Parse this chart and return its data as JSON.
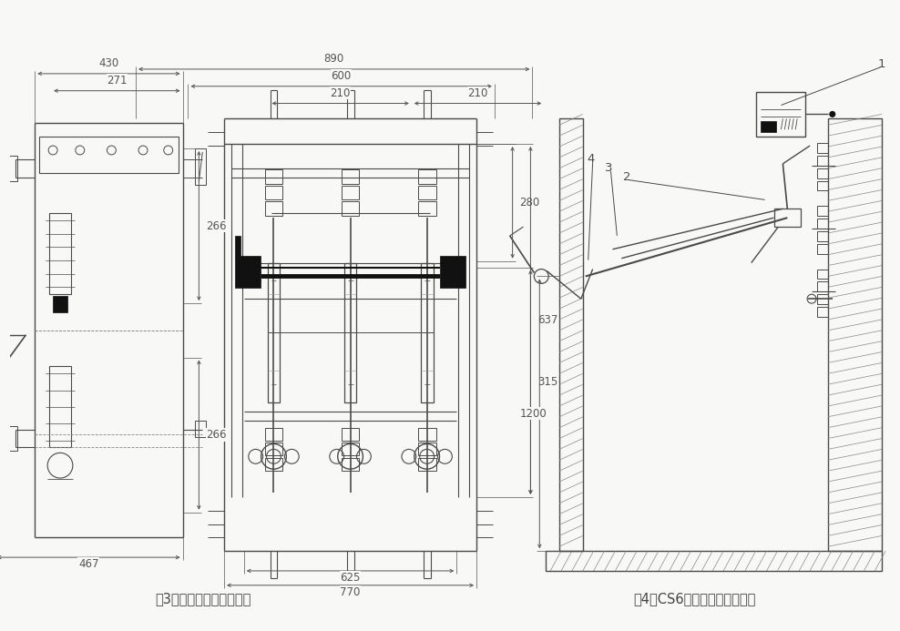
{
  "bg_color": "#f8f8f6",
  "line_color": "#4a4a4a",
  "dim_color": "#555555",
  "caption_left": "图3、脱扣器撞击负荷开关",
  "caption_right": "图4、CS6操作机构安装示意图",
  "font_size_caption": 10.5,
  "font_size_dim": 8.5,
  "white": "#ffffff",
  "black": "#111111",
  "gray": "#888888",
  "light_gray": "#cccccc"
}
